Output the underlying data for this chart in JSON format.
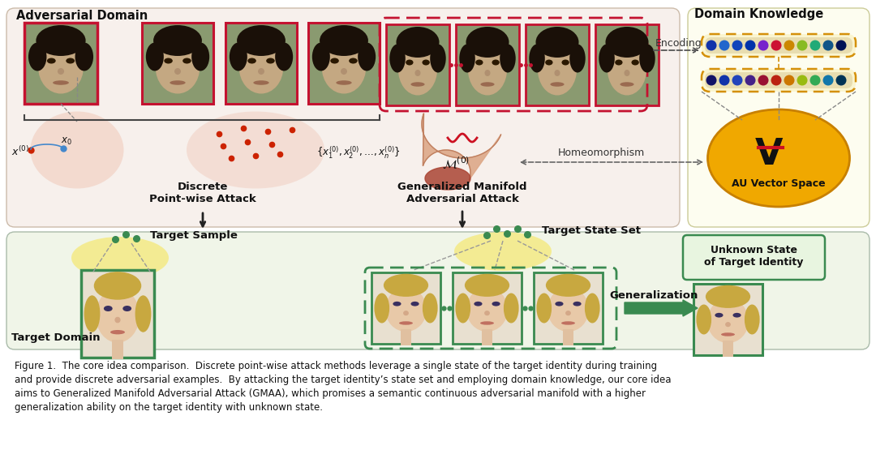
{
  "fig_width": 10.8,
  "fig_height": 5.55,
  "dpi": 100,
  "bg_color": "#ffffff",
  "adversarial_bg": "#f7f0ec",
  "domain_knowledge_bg": "#fdfdf0",
  "target_domain_bg": "#f0f5e8",
  "target_domain_right_bg": "#eef5e8",
  "title_adversarial": "Adversarial Domain",
  "title_domain": "Domain Knowledge",
  "title_target": "Target Domain",
  "label_discrete": "Discrete\nPoint-wise Attack",
  "label_gmaa": "Generalized Manifold\nAdversarial Attack",
  "label_target_sample": "Target Sample",
  "label_target_state": "Target State Set",
  "label_unknown": "Unknown State\nof Target Identity",
  "label_generalization": "Generalization",
  "label_encoding": "Encoding",
  "label_homeomorphism": "Homeomorphism",
  "label_au": "AU Vector Space",
  "caption_line1": "Figure 1.  The core idea comparison.  Discrete point-wise attack methods leverage a single state of the target identity during training",
  "caption_line2": "and provide discrete adversarial examples.  By attacking the target identity’s state set and employing domain knowledge, our core idea",
  "caption_line3": "aims to Generalized Manifold Adversarial Attack (GMAA), which promises a semantic continuous adversarial manifold with a higher",
  "caption_line4": "generalization ability on the target identity with unknown state.",
  "red_border": "#c41230",
  "green_border": "#3a8a50",
  "orange_dashed": "#d4900a",
  "dark_gray": "#333333",
  "mid_gray": "#666666",
  "pink_blob": "#f0c8b0",
  "dark_pink_blob": "#c07860",
  "gold_fill": "#f0a800",
  "gold_stroke": "#c88000",
  "red_dot": "#cc2200",
  "green_dot": "#3a8a50",
  "blue_dot": "#4488cc",
  "yellow_ellipse": "#f5e87a",
  "bar_colors_row1": [
    "#1133aa",
    "#2266cc",
    "#1144bb",
    "#0033aa",
    "#7722cc",
    "#cc1133",
    "#cc8800",
    "#88bb22",
    "#22aa77",
    "#115588",
    "#001155"
  ],
  "bar_colors_row2": [
    "#111166",
    "#1133aa",
    "#2244bb",
    "#442288",
    "#991133",
    "#bb2211",
    "#cc7700",
    "#99bb11",
    "#33aa55",
    "#1177aa",
    "#003355"
  ]
}
